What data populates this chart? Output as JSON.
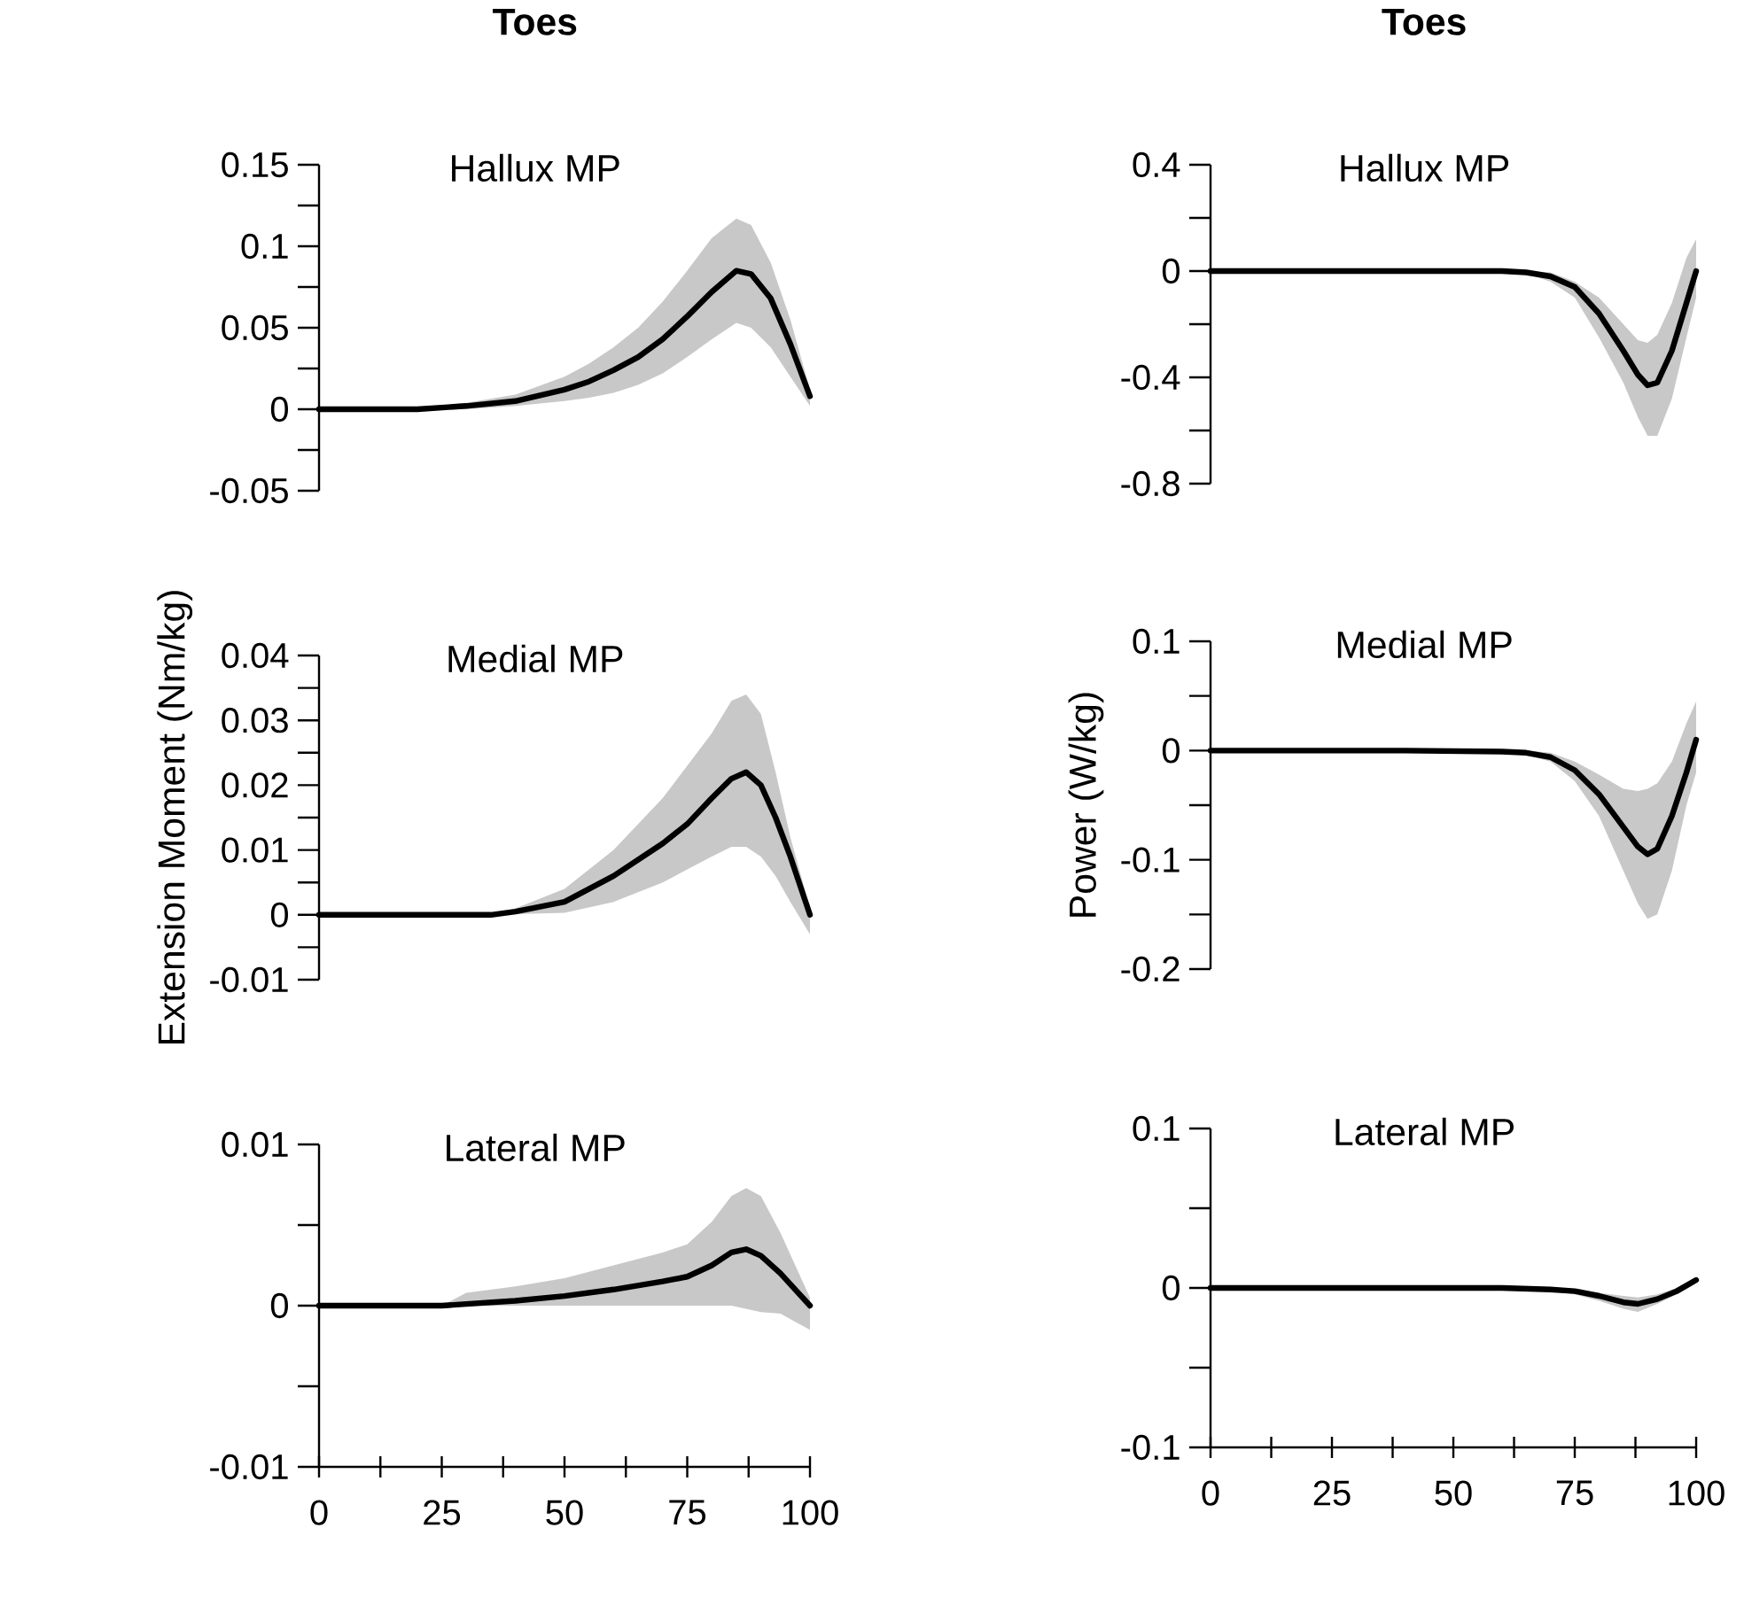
{
  "chart_data": [
    {
      "type": "line",
      "title": "Toes",
      "subtitle": "Hallux MP",
      "xlim": [
        0,
        100
      ],
      "ylim": [
        -0.05,
        0.15
      ],
      "tick_labels": "y",
      "yticks": [
        0.15,
        {
          "value": 0.125,
          "label": null
        },
        0.1,
        {
          "value": 0.075,
          "label": null
        },
        0.05,
        {
          "value": 0.025,
          "label": null
        },
        0,
        {
          "value": -0.025,
          "label": null
        },
        -0.05
      ],
      "series": [
        {
          "color": "#000000",
          "x": [
            0,
            10,
            20,
            30,
            40,
            50,
            55,
            60,
            65,
            70,
            75,
            80,
            85,
            88,
            92,
            96,
            100
          ],
          "values": [
            0,
            0,
            0,
            0.002,
            0.005,
            0.012,
            0.017,
            0.024,
            0.032,
            0.043,
            0.057,
            0.072,
            0.085,
            0.083,
            0.068,
            0.04,
            0.008
          ],
          "upper": [
            0,
            0,
            0.001,
            0.004,
            0.009,
            0.02,
            0.028,
            0.038,
            0.05,
            0.066,
            0.085,
            0.105,
            0.117,
            0.113,
            0.09,
            0.055,
            0.012
          ],
          "lower": [
            0,
            0,
            0,
            0,
            0.002,
            0.005,
            0.007,
            0.01,
            0.015,
            0.022,
            0.032,
            0.043,
            0.053,
            0.05,
            0.038,
            0.02,
            0.002
          ]
        }
      ]
    },
    {
      "type": "line",
      "title": "Toes",
      "subtitle": "Hallux MP",
      "xlim": [
        0,
        100
      ],
      "ylim": [
        -0.8,
        0.4
      ],
      "tick_labels": "y",
      "yticks": [
        0.4,
        {
          "value": 0.2,
          "label": null
        },
        0,
        {
          "value": -0.2,
          "label": null
        },
        -0.4,
        {
          "value": -0.6,
          "label": null
        },
        -0.8
      ],
      "series": [
        {
          "color": "#000000",
          "x": [
            0,
            20,
            40,
            60,
            65,
            70,
            75,
            80,
            85,
            88,
            90,
            92,
            95,
            98,
            100
          ],
          "values": [
            0,
            0,
            0,
            0,
            -0.005,
            -0.02,
            -0.06,
            -0.16,
            -0.3,
            -0.39,
            -0.43,
            -0.42,
            -0.3,
            -0.12,
            0
          ],
          "upper": [
            0,
            0,
            0,
            0,
            0,
            -0.005,
            -0.04,
            -0.1,
            -0.2,
            -0.26,
            -0.27,
            -0.24,
            -0.12,
            0.05,
            0.12
          ],
          "lower": [
            0,
            0,
            0,
            0,
            -0.01,
            -0.04,
            -0.1,
            -0.25,
            -0.42,
            -0.55,
            -0.62,
            -0.62,
            -0.48,
            -0.25,
            -0.1
          ]
        }
      ]
    },
    {
      "type": "line",
      "title": "Medial MP",
      "ylabel": "Extension Moment (Nm/kg)",
      "xlim": [
        0,
        100
      ],
      "ylim": [
        -0.01,
        0.04
      ],
      "tick_labels": "y",
      "yticks": [
        0.04,
        {
          "value": 0.035,
          "label": null
        },
        0.03,
        {
          "value": 0.025,
          "label": null
        },
        0.02,
        {
          "value": 0.015,
          "label": null
        },
        0.01,
        {
          "value": 0.005,
          "label": null
        },
        0,
        {
          "value": -0.005,
          "label": null
        },
        -0.01
      ],
      "series": [
        {
          "color": "#000000",
          "x": [
            0,
            20,
            35,
            40,
            50,
            60,
            70,
            75,
            80,
            84,
            87,
            90,
            93,
            96,
            100
          ],
          "values": [
            0,
            0,
            0,
            0.0005,
            0.002,
            0.006,
            0.011,
            0.014,
            0.018,
            0.021,
            0.022,
            0.02,
            0.015,
            0.009,
            0
          ],
          "upper": [
            0,
            0,
            0,
            0.001,
            0.004,
            0.01,
            0.018,
            0.023,
            0.028,
            0.033,
            0.034,
            0.031,
            0.022,
            0.012,
            0.001
          ],
          "lower": [
            0,
            0,
            0,
            0.0001,
            0.0003,
            0.002,
            0.005,
            0.007,
            0.009,
            0.0105,
            0.0105,
            0.009,
            0.006,
            0.002,
            -0.003
          ]
        }
      ]
    },
    {
      "type": "line",
      "title": "Medial MP",
      "ylabel": "Power (W/kg)",
      "xlim": [
        0,
        100
      ],
      "ylim": [
        -0.2,
        0.1
      ],
      "tick_labels": "y",
      "yticks": [
        0.1,
        {
          "value": 0.05,
          "label": null
        },
        0,
        {
          "value": -0.05,
          "label": null
        },
        -0.1,
        {
          "value": -0.15,
          "label": null
        },
        -0.2
      ],
      "series": [
        {
          "color": "#000000",
          "x": [
            0,
            20,
            40,
            60,
            65,
            70,
            75,
            80,
            85,
            88,
            90,
            92,
            95,
            98,
            100
          ],
          "values": [
            0,
            0,
            0,
            -0.001,
            -0.002,
            -0.006,
            -0.018,
            -0.04,
            -0.07,
            -0.088,
            -0.095,
            -0.09,
            -0.06,
            -0.02,
            0.01
          ],
          "upper": [
            0,
            0,
            0,
            0,
            0,
            -0.002,
            -0.01,
            -0.022,
            -0.035,
            -0.037,
            -0.035,
            -0.03,
            -0.01,
            0.025,
            0.045
          ],
          "lower": [
            0,
            0,
            0,
            -0.002,
            -0.004,
            -0.01,
            -0.028,
            -0.06,
            -0.11,
            -0.14,
            -0.154,
            -0.15,
            -0.11,
            -0.05,
            -0.02
          ]
        }
      ]
    },
    {
      "type": "line",
      "title": "Lateral MP",
      "xlim": [
        0,
        100
      ],
      "ylim": [
        -0.01,
        0.01
      ],
      "xticks": [
        0,
        {
          "value": 12.5,
          "label": null
        },
        25,
        {
          "value": 37.5,
          "label": null
        },
        50,
        {
          "value": 62.5,
          "label": null
        },
        75,
        {
          "value": 87.5,
          "label": null
        },
        100
      ],
      "yticks": [
        0.01,
        {
          "value": 0.005,
          "label": null
        },
        0,
        {
          "value": -0.005,
          "label": null
        },
        -0.01
      ],
      "series": [
        {
          "color": "#000000",
          "x": [
            0,
            20,
            25,
            30,
            40,
            50,
            60,
            70,
            75,
            80,
            84,
            87,
            90,
            94,
            97,
            100
          ],
          "values": [
            0,
            0,
            0,
            0.0001,
            0.0003,
            0.0006,
            0.001,
            0.0015,
            0.0018,
            0.0025,
            0.0033,
            0.0035,
            0.0031,
            0.002,
            0.001,
            0
          ],
          "upper": [
            0,
            0,
            0,
            0.0008,
            0.0012,
            0.0017,
            0.0025,
            0.0033,
            0.0038,
            0.0052,
            0.0068,
            0.0073,
            0.0068,
            0.0045,
            0.0025,
            0.0005
          ],
          "lower": [
            0,
            0,
            0,
            0,
            0,
            0,
            0,
            0,
            0,
            0,
            0,
            -0.0002,
            -0.0004,
            -0.0005,
            -0.001,
            -0.0015
          ]
        }
      ]
    },
    {
      "type": "line",
      "title": "Lateral MP",
      "xlim": [
        0,
        100
      ],
      "ylim": [
        -0.1,
        0.1
      ],
      "xticks": [
        0,
        {
          "value": 12.5,
          "label": null
        },
        25,
        {
          "value": 37.5,
          "label": null
        },
        50,
        {
          "value": 62.5,
          "label": null
        },
        75,
        {
          "value": 87.5,
          "label": null
        },
        100
      ],
      "yticks": [
        0.1,
        {
          "value": 0.05,
          "label": null
        },
        0,
        {
          "value": -0.05,
          "label": null
        },
        -0.1
      ],
      "series": [
        {
          "color": "#000000",
          "x": [
            0,
            20,
            40,
            60,
            70,
            75,
            80,
            85,
            88,
            92,
            96,
            100
          ],
          "values": [
            0,
            0,
            0,
            0,
            -0.001,
            -0.002,
            -0.005,
            -0.009,
            -0.01,
            -0.007,
            -0.002,
            0.005
          ],
          "upper": [
            0,
            0,
            0,
            0,
            0,
            -0.001,
            -0.003,
            -0.005,
            -0.006,
            -0.004,
            0,
            0.006
          ],
          "lower": [
            0,
            0,
            0,
            0,
            -0.002,
            -0.004,
            -0.008,
            -0.013,
            -0.015,
            -0.01,
            -0.004,
            0.003
          ]
        }
      ]
    }
  ]
}
